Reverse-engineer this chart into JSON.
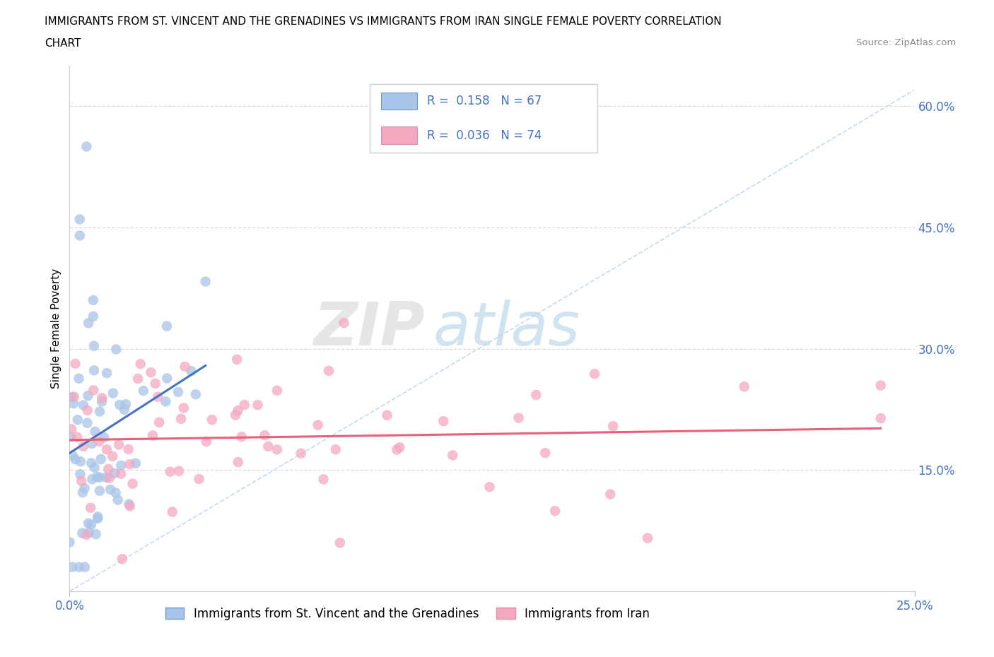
{
  "title_line1": "IMMIGRANTS FROM ST. VINCENT AND THE GRENADINES VS IMMIGRANTS FROM IRAN SINGLE FEMALE POVERTY CORRELATION",
  "title_line2": "CHART",
  "source_text": "Source: ZipAtlas.com",
  "ylabel": "Single Female Poverty",
  "x_min": 0.0,
  "x_max": 0.25,
  "y_min": 0.0,
  "y_max": 0.65,
  "x_tick_labels": [
    "0.0%",
    "25.0%"
  ],
  "x_tick_values": [
    0.0,
    0.25
  ],
  "y_tick_labels": [
    "15.0%",
    "30.0%",
    "45.0%",
    "60.0%"
  ],
  "y_tick_values": [
    0.15,
    0.3,
    0.45,
    0.6
  ],
  "watermark_zip": "ZIP",
  "watermark_atlas": "atlas",
  "series1_color": "#a8c4e8",
  "series2_color": "#f4a8c0",
  "series1_line_color": "#4472c4",
  "series2_line_color": "#e8607a",
  "diag_line_color": "#b8d0f0",
  "series1_label": "Immigrants from St. Vincent and the Grenadines",
  "series2_label": "Immigrants from Iran",
  "R1": 0.158,
  "N1": 67,
  "R2": 0.036,
  "N2": 74,
  "legend_color": "#4472c4",
  "grid_color": "#d8d8d8",
  "axis_tick_color": "#4472c4",
  "title_fontsize": 11,
  "tick_fontsize": 12,
  "ylabel_fontsize": 11,
  "legend_fontsize": 12
}
